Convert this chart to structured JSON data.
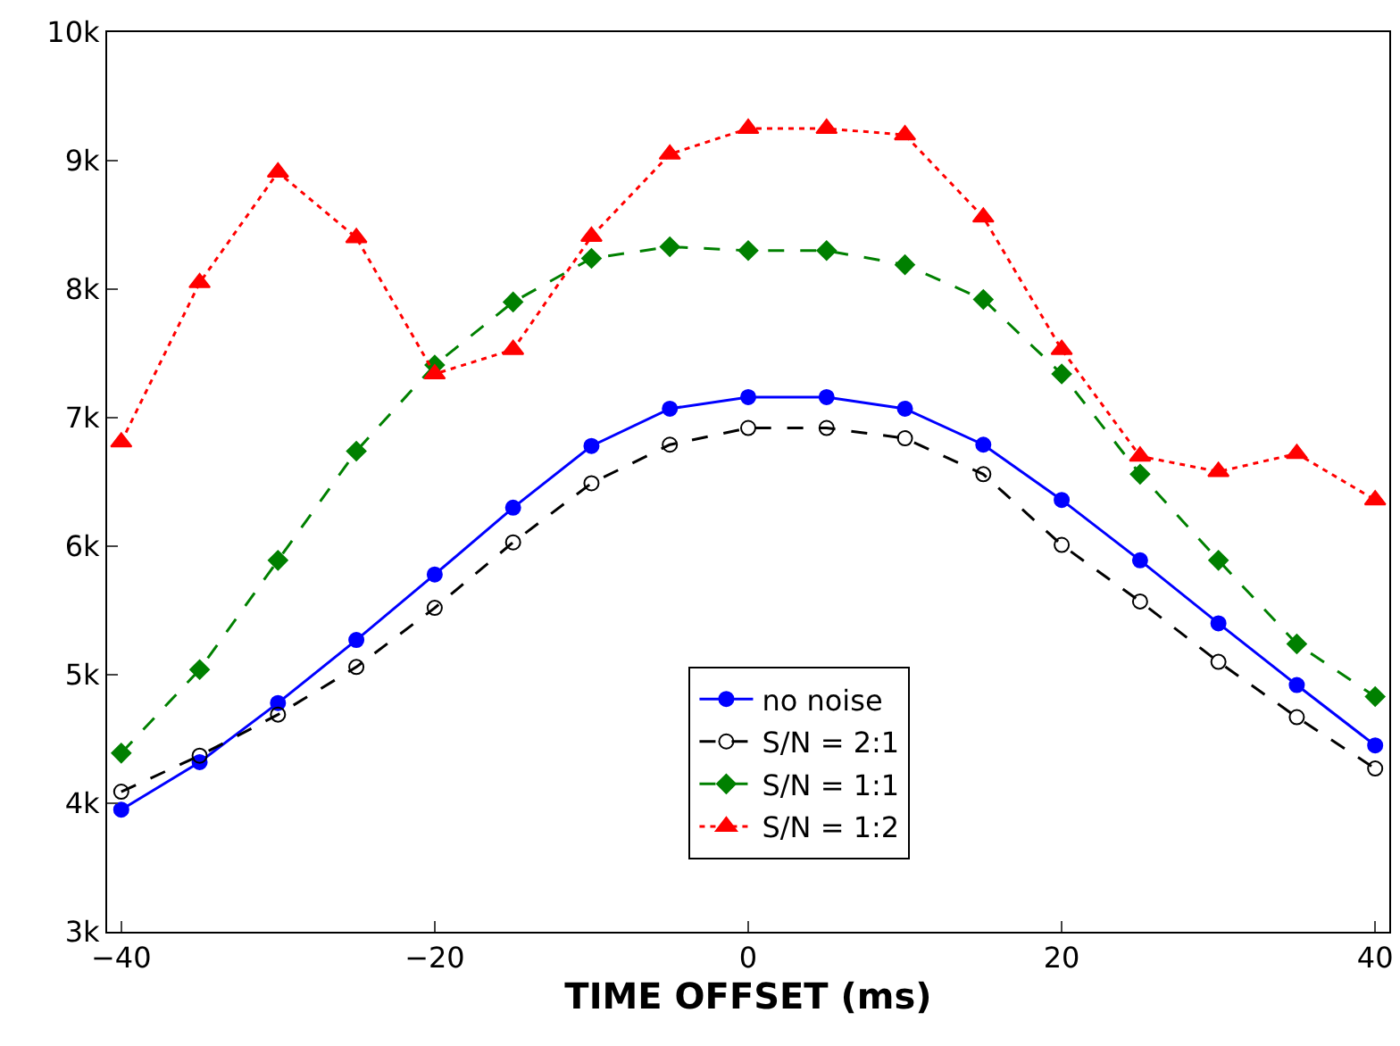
{
  "chart_data": {
    "type": "line",
    "xlabel": "TIME OFFSET (ms)",
    "x": [
      -40,
      -35,
      -30,
      -25,
      -20,
      -15,
      -10,
      -5,
      0,
      5,
      10,
      15,
      20,
      25,
      30,
      35,
      40
    ],
    "series": [
      {
        "name": "no noise",
        "color": "#0000ff",
        "marker": "circle",
        "line_style": "solid",
        "values": [
          3950,
          4320,
          4780,
          5270,
          5780,
          6300,
          6780,
          7070,
          7160,
          7160,
          7070,
          6790,
          6360,
          5890,
          5400,
          4920,
          4450
        ]
      },
      {
        "name": "S/N = 2:1",
        "color": "#000000",
        "marker": "circle-open",
        "line_style": "dashed",
        "values": [
          4090,
          4370,
          4690,
          5060,
          5520,
          6030,
          6490,
          6790,
          6920,
          6920,
          6840,
          6560,
          6010,
          5570,
          5100,
          4670,
          4270
        ]
      },
      {
        "name": "S/N = 1:1",
        "color": "#008000",
        "marker": "diamond",
        "line_style": "dashed",
        "values": [
          4390,
          5040,
          5890,
          6740,
          7410,
          7900,
          8240,
          8330,
          8300,
          8300,
          8190,
          7920,
          7340,
          6560,
          5890,
          5240,
          4830
        ]
      },
      {
        "name": "S/N = 1:2",
        "color": "#ff0000",
        "marker": "triangle",
        "line_style": "dotted",
        "values": [
          6810,
          8050,
          8910,
          8400,
          7340,
          7530,
          8410,
          9050,
          9250,
          9250,
          9200,
          8560,
          7530,
          6700,
          6580,
          6720,
          6360
        ]
      }
    ],
    "xlim": [
      -40.9,
      40.9
    ],
    "xticks": [
      {
        "value": -40,
        "label": "−40"
      },
      {
        "value": -20,
        "label": "−20"
      },
      0,
      20,
      40
    ],
    "ylim": [
      3000,
      10000
    ],
    "yticks": [
      {
        "value": 3000,
        "label": "3k"
      },
      {
        "value": 4000,
        "label": "4k"
      },
      {
        "value": 5000,
        "label": "5k"
      },
      {
        "value": 6000,
        "label": "6k"
      },
      {
        "value": 7000,
        "label": "7k"
      },
      {
        "value": 8000,
        "label": "8k"
      },
      {
        "value": 9000,
        "label": "9k"
      },
      {
        "value": 10000,
        "label": "10k"
      }
    ],
    "legend": "bottom"
  }
}
